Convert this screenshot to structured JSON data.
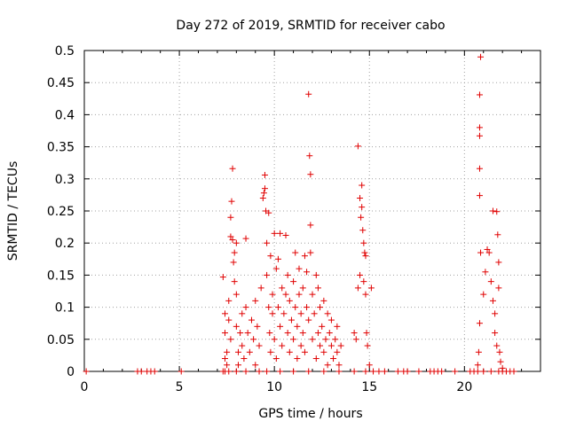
{
  "chart_data": {
    "type": "scatter",
    "title": "Day 272 of 2019, SRMTID for receiver cabo",
    "xlabel": "GPS time / hours",
    "ylabel": "SRMTID / TECUs",
    "xlim": [
      0,
      24
    ],
    "ylim": [
      0,
      0.5
    ],
    "xticks": [
      0,
      5,
      10,
      15,
      20
    ],
    "yticks": [
      0,
      0.05,
      0.1,
      0.15,
      0.2,
      0.25,
      0.3,
      0.35,
      0.4,
      0.45,
      0.5
    ],
    "xtick_labels": [
      "0",
      "5",
      "10",
      "15",
      "20"
    ],
    "ytick_labels": [
      "0",
      "0.05",
      "0.1",
      "0.15",
      "0.2",
      "0.25",
      "0.3",
      "0.35",
      "0.4",
      "0.45",
      "0.5"
    ],
    "grid": true,
    "marker": "+",
    "series": [
      {
        "name": "SRMTID",
        "color": "#e00000",
        "points": [
          [
            0.1,
            0.0
          ],
          [
            2.8,
            0.0
          ],
          [
            3.0,
            0.0
          ],
          [
            3.3,
            0.0
          ],
          [
            3.5,
            0.0
          ],
          [
            3.7,
            0.0
          ],
          [
            5.1,
            0.0
          ],
          [
            7.3,
            0.0
          ],
          [
            7.4,
            0.0
          ],
          [
            7.6,
            0.0
          ],
          [
            8.0,
            0.0
          ],
          [
            8.5,
            0.0
          ],
          [
            9.2,
            0.0
          ],
          [
            9.6,
            0.0
          ],
          [
            10.3,
            0.0
          ],
          [
            11.0,
            0.0
          ],
          [
            11.8,
            0.0
          ],
          [
            12.6,
            0.0
          ],
          [
            13.4,
            0.0
          ],
          [
            14.2,
            0.0
          ],
          [
            14.8,
            0.0
          ],
          [
            15.2,
            0.0
          ],
          [
            15.5,
            0.0
          ],
          [
            15.8,
            0.0
          ],
          [
            16.5,
            0.0
          ],
          [
            16.8,
            0.0
          ],
          [
            17.0,
            0.0
          ],
          [
            17.6,
            0.0
          ],
          [
            18.2,
            0.0
          ],
          [
            18.4,
            0.0
          ],
          [
            18.6,
            0.0
          ],
          [
            18.8,
            0.0
          ],
          [
            19.5,
            0.0
          ],
          [
            20.3,
            0.0
          ],
          [
            20.5,
            0.0
          ],
          [
            20.7,
            0.0
          ],
          [
            21.0,
            0.0
          ],
          [
            21.4,
            0.0
          ],
          [
            21.8,
            0.0
          ],
          [
            22.0,
            0.0
          ],
          [
            22.2,
            0.0
          ],
          [
            22.4,
            0.0
          ],
          [
            22.6,
            0.0
          ],
          [
            7.3,
            0.147
          ],
          [
            7.4,
            0.09
          ],
          [
            7.4,
            0.06
          ],
          [
            7.5,
            0.03
          ],
          [
            7.4,
            0.02
          ],
          [
            7.5,
            0.01
          ],
          [
            7.6,
            0.11
          ],
          [
            7.6,
            0.08
          ],
          [
            7.7,
            0.05
          ],
          [
            7.7,
            0.21
          ],
          [
            7.7,
            0.24
          ],
          [
            7.75,
            0.265
          ],
          [
            7.8,
            0.316
          ],
          [
            7.8,
            0.205
          ],
          [
            7.85,
            0.17
          ],
          [
            7.9,
            0.185
          ],
          [
            7.9,
            0.14
          ],
          [
            8.0,
            0.2
          ],
          [
            8.0,
            0.12
          ],
          [
            8.0,
            0.07
          ],
          [
            8.1,
            0.03
          ],
          [
            8.1,
            0.01
          ],
          [
            8.2,
            0.06
          ],
          [
            8.3,
            0.09
          ],
          [
            8.3,
            0.04
          ],
          [
            8.4,
            0.02
          ],
          [
            8.5,
            0.1
          ],
          [
            8.5,
            0.207
          ],
          [
            8.6,
            0.06
          ],
          [
            8.7,
            0.03
          ],
          [
            8.8,
            0.08
          ],
          [
            8.9,
            0.05
          ],
          [
            9.0,
            0.01
          ],
          [
            9.0,
            0.11
          ],
          [
            9.1,
            0.07
          ],
          [
            9.2,
            0.04
          ],
          [
            9.3,
            0.13
          ],
          [
            9.4,
            0.27
          ],
          [
            9.45,
            0.278
          ],
          [
            9.5,
            0.306
          ],
          [
            9.5,
            0.285
          ],
          [
            9.55,
            0.25
          ],
          [
            9.6,
            0.2
          ],
          [
            9.6,
            0.15
          ],
          [
            9.7,
            0.247
          ],
          [
            9.7,
            0.1
          ],
          [
            9.75,
            0.06
          ],
          [
            9.8,
            0.03
          ],
          [
            9.8,
            0.18
          ],
          [
            9.9,
            0.12
          ],
          [
            9.9,
            0.09
          ],
          [
            10.0,
            0.215
          ],
          [
            10.0,
            0.05
          ],
          [
            10.1,
            0.16
          ],
          [
            10.1,
            0.02
          ],
          [
            10.2,
            0.1
          ],
          [
            10.2,
            0.175
          ],
          [
            10.3,
            0.07
          ],
          [
            10.3,
            0.215
          ],
          [
            10.4,
            0.13
          ],
          [
            10.4,
            0.04
          ],
          [
            10.5,
            0.09
          ],
          [
            10.6,
            0.12
          ],
          [
            10.6,
            0.212
          ],
          [
            10.7,
            0.06
          ],
          [
            10.7,
            0.15
          ],
          [
            10.8,
            0.03
          ],
          [
            10.8,
            0.11
          ],
          [
            10.9,
            0.08
          ],
          [
            11.0,
            0.14
          ],
          [
            11.0,
            0.05
          ],
          [
            11.1,
            0.1
          ],
          [
            11.1,
            0.185
          ],
          [
            11.2,
            0.02
          ],
          [
            11.2,
            0.07
          ],
          [
            11.3,
            0.12
          ],
          [
            11.3,
            0.16
          ],
          [
            11.4,
            0.04
          ],
          [
            11.4,
            0.09
          ],
          [
            11.5,
            0.06
          ],
          [
            11.5,
            0.13
          ],
          [
            11.6,
            0.18
          ],
          [
            11.6,
            0.03
          ],
          [
            11.7,
            0.1
          ],
          [
            11.7,
            0.155
          ],
          [
            11.8,
            0.432
          ],
          [
            11.8,
            0.08
          ],
          [
            11.85,
            0.336
          ],
          [
            11.9,
            0.307
          ],
          [
            11.9,
            0.228
          ],
          [
            11.9,
            0.185
          ],
          [
            12.0,
            0.05
          ],
          [
            12.0,
            0.12
          ],
          [
            12.1,
            0.09
          ],
          [
            12.2,
            0.15
          ],
          [
            12.2,
            0.02
          ],
          [
            12.3,
            0.06
          ],
          [
            12.3,
            0.13
          ],
          [
            12.4,
            0.04
          ],
          [
            12.4,
            0.1
          ],
          [
            12.5,
            0.07
          ],
          [
            12.6,
            0.11
          ],
          [
            12.6,
            0.03
          ],
          [
            12.7,
            0.05
          ],
          [
            12.8,
            0.09
          ],
          [
            12.8,
            0.01
          ],
          [
            12.9,
            0.06
          ],
          [
            13.0,
            0.04
          ],
          [
            13.0,
            0.08
          ],
          [
            13.1,
            0.02
          ],
          [
            13.2,
            0.05
          ],
          [
            13.3,
            0.07
          ],
          [
            13.3,
            0.03
          ],
          [
            13.4,
            0.01
          ],
          [
            13.5,
            0.04
          ],
          [
            14.2,
            0.06
          ],
          [
            14.3,
            0.05
          ],
          [
            14.4,
            0.351
          ],
          [
            14.4,
            0.13
          ],
          [
            14.5,
            0.27
          ],
          [
            14.5,
            0.15
          ],
          [
            14.55,
            0.24
          ],
          [
            14.6,
            0.29
          ],
          [
            14.6,
            0.256
          ],
          [
            14.65,
            0.22
          ],
          [
            14.7,
            0.2
          ],
          [
            14.7,
            0.14
          ],
          [
            14.75,
            0.185
          ],
          [
            14.8,
            0.18
          ],
          [
            14.8,
            0.12
          ],
          [
            14.85,
            0.06
          ],
          [
            14.9,
            0.04
          ],
          [
            15.0,
            0.01
          ],
          [
            15.1,
            0.13
          ],
          [
            20.7,
            0.01
          ],
          [
            20.75,
            0.03
          ],
          [
            20.8,
            0.075
          ],
          [
            20.85,
            0.185
          ],
          [
            20.8,
            0.274
          ],
          [
            20.8,
            0.316
          ],
          [
            20.8,
            0.367
          ],
          [
            20.8,
            0.38
          ],
          [
            20.8,
            0.431
          ],
          [
            20.85,
            0.49
          ],
          [
            21.0,
            0.12
          ],
          [
            21.1,
            0.155
          ],
          [
            21.2,
            0.19
          ],
          [
            21.3,
            0.185
          ],
          [
            21.4,
            0.14
          ],
          [
            21.5,
            0.11
          ],
          [
            21.5,
            0.25
          ],
          [
            21.6,
            0.09
          ],
          [
            21.6,
            0.06
          ],
          [
            21.7,
            0.04
          ],
          [
            21.7,
            0.249
          ],
          [
            21.75,
            0.213
          ],
          [
            21.8,
            0.17
          ],
          [
            21.8,
            0.13
          ],
          [
            21.85,
            0.03
          ],
          [
            21.9,
            0.015
          ],
          [
            22.0,
            0.005
          ]
        ]
      }
    ]
  }
}
